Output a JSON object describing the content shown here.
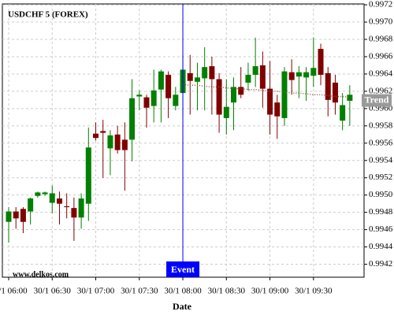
{
  "chart_data": {
    "type": "candlestick",
    "title": "USDCHF 5 (FOREX)",
    "x_label": "Date",
    "watermark": "www.delkos.com",
    "categories": [
      "30/1 06:00",
      null,
      null,
      null,
      null,
      null,
      "30/1 06:30",
      null,
      null,
      null,
      null,
      null,
      "30/1 07:00",
      null,
      null,
      null,
      null,
      null,
      "30/1 07:30",
      null,
      null,
      null,
      null,
      null,
      "30/1 08:00",
      null,
      null,
      null,
      null,
      null,
      "30/1 08:30",
      null,
      null,
      null,
      null,
      null,
      "30/1 09:00",
      null,
      null,
      null,
      null,
      null,
      "30/1 09:30",
      null,
      null,
      null,
      null,
      null
    ],
    "open": [
      0.99469,
      0.99481,
      0.99484,
      0.99481,
      0.99499,
      0.99501,
      0.99491,
      0.99496,
      0.99487,
      0.99485,
      0.99474,
      0.9949,
      0.99571,
      0.99574,
      0.99554,
      0.9957,
      0.99564,
      0.99564,
      0.99614,
      0.99613,
      0.99603,
      0.99622,
      0.99639,
      0.99603,
      0.99618,
      0.99641,
      0.99631,
      0.99635,
      0.99649,
      0.99634,
      0.99589,
      0.99607,
      0.99625,
      0.9963,
      0.99639,
      0.9965,
      0.99623,
      0.99607,
      0.99589,
      0.99642,
      0.99637,
      0.99636,
      0.99638,
      0.99669,
      0.99641,
      0.9963,
      0.99586,
      0.99609
    ],
    "high": [
      0.99486,
      0.99486,
      0.99486,
      0.99497,
      0.99504,
      0.99504,
      0.99511,
      0.99504,
      0.99502,
      0.99497,
      0.99502,
      0.99578,
      0.99584,
      0.99587,
      0.99575,
      0.9958,
      0.99584,
      0.99634,
      0.99621,
      0.99616,
      0.99645,
      0.99645,
      0.99643,
      0.99625,
      0.99662,
      0.99662,
      0.99653,
      0.99671,
      0.9966,
      0.99641,
      0.99634,
      0.99636,
      0.99648,
      0.99653,
      0.99682,
      0.99666,
      0.99655,
      0.99616,
      0.99648,
      0.99657,
      0.99649,
      0.99648,
      0.99682,
      0.99675,
      0.99648,
      0.99639,
      0.99618,
      0.99627
    ],
    "low": [
      0.99445,
      0.99461,
      0.99456,
      0.99466,
      0.99497,
      0.99499,
      0.99479,
      0.99466,
      0.99473,
      0.99447,
      0.99461,
      0.9947,
      0.99563,
      0.9952,
      0.99523,
      0.99548,
      0.99505,
      0.99539,
      0.99598,
      0.99578,
      0.99584,
      0.99584,
      0.99589,
      0.99598,
      0.99591,
      0.99593,
      0.99598,
      0.99598,
      0.99593,
      0.99572,
      0.9957,
      0.99575,
      0.99612,
      0.99621,
      0.99625,
      0.99601,
      0.9957,
      0.99565,
      0.9958,
      0.99616,
      0.99612,
      0.99609,
      0.99625,
      0.99627,
      0.99591,
      0.99593,
      0.99575,
      0.9958
    ],
    "close": [
      0.99481,
      0.99473,
      0.99469,
      0.99496,
      0.99503,
      0.99503,
      0.99502,
      0.9949,
      0.99486,
      0.99474,
      0.99496,
      0.99555,
      0.99566,
      0.99572,
      0.99569,
      0.99552,
      0.99552,
      0.99612,
      0.99616,
      0.99601,
      0.99621,
      0.99643,
      0.99612,
      0.99616,
      0.99645,
      0.99632,
      0.99636,
      0.99648,
      0.99634,
      0.99593,
      0.99602,
      0.99625,
      0.99616,
      0.99639,
      0.99649,
      0.99623,
      0.99593,
      0.99591,
      0.99643,
      0.99633,
      0.99642,
      0.99642,
      0.99647,
      0.99639,
      0.9961,
      0.99607,
      0.99604,
      0.99616
    ],
    "up_color": "#008000",
    "down_color": "#800000",
    "trend": {
      "name": "Trend",
      "color": "#8b5a3c",
      "values": [
        null,
        null,
        null,
        null,
        null,
        null,
        null,
        null,
        null,
        null,
        null,
        null,
        null,
        null,
        null,
        null,
        null,
        null,
        null,
        null,
        null,
        null,
        null,
        null,
        0.99628,
        0.99627,
        0.99627,
        0.99626,
        0.99625,
        0.99625,
        0.99624,
        0.99623,
        0.99623,
        0.99622,
        0.99622,
        0.99621,
        0.9962,
        0.9962,
        0.99619,
        0.99618,
        0.99618,
        0.99617,
        0.99616,
        0.99616,
        0.99615,
        0.99614,
        0.99614,
        0.99613
      ]
    },
    "event": {
      "x": "30/1 08:00",
      "label": "Event",
      "color": "#0000ff"
    },
    "ylim": [
      0.99405,
      0.99721
    ],
    "yticks": [
      0.9942,
      0.9944,
      0.9946,
      0.9948,
      {
        "value": 0.995,
        "label": "0.9950"
      },
      0.9952,
      0.9954,
      0.9956,
      0.9958,
      {
        "value": 0.996,
        "label": "0.9960"
      },
      0.9962,
      0.9964,
      0.9966,
      0.9968,
      {
        "value": 0.997,
        "label": "0.9970"
      },
      0.9972
    ],
    "grid": true
  }
}
